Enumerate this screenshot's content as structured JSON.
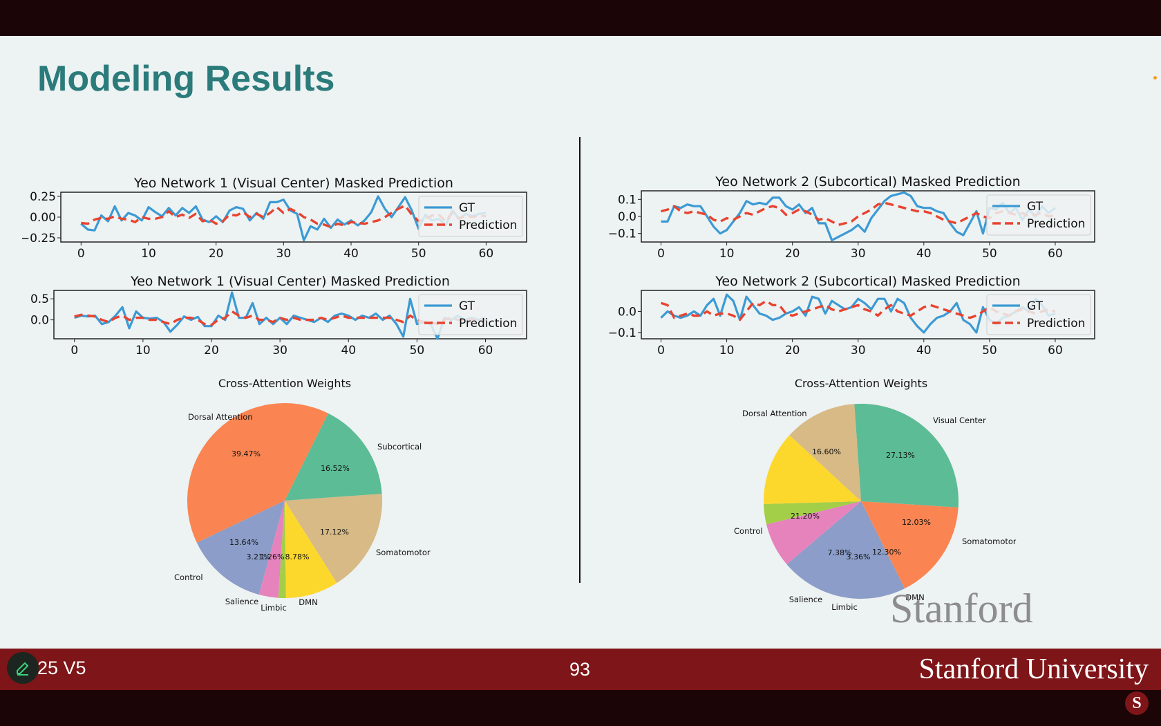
{
  "slide": {
    "title": "Modeling Results",
    "course_label": "25 V5",
    "page_number": "93",
    "university": "Stanford University",
    "wordmark": "Stanford",
    "logo_letter": "S"
  },
  "colors": {
    "title": "#2b7b7b",
    "footer": "#7e1518",
    "gt": "#3b9ad4",
    "prediction": "#e8432f",
    "pie": {
      "Dorsal Attention": "#fa8552",
      "Subcortical": "#5cbc95",
      "Visual Center": "#5cbc95",
      "Somatomotor": "#d7ba86",
      "DMN": "#fdd82c",
      "Limbic": "#a3ce48",
      "Salience": "#e683bd",
      "Control": "#8b9dc8"
    }
  },
  "chart_data": [
    {
      "type": "line",
      "title": "Yeo Network 1 (Visual Center) Masked Prediction",
      "ylim": [
        -0.3,
        0.3
      ],
      "yticks": [
        "0.25",
        "0.00",
        "−0.25"
      ],
      "ytick_values": [
        0.25,
        0.0,
        -0.25
      ],
      "xticks": [
        "0",
        "10",
        "20",
        "30",
        "40",
        "50",
        "60"
      ],
      "xlim": [
        -3,
        66
      ],
      "legend": "top-right",
      "series": [
        {
          "name": "GT",
          "values": [
            -0.08,
            -0.15,
            -0.16,
            0.02,
            -0.05,
            0.13,
            -0.04,
            0.05,
            0.02,
            -0.04,
            0.12,
            0.06,
            0.01,
            0.11,
            0.02,
            0.11,
            0.05,
            0.13,
            -0.03,
            -0.06,
            0.01,
            -0.06,
            0.08,
            0.12,
            0.1,
            -0.04,
            0.05,
            -0.02,
            0.18,
            0.18,
            0.21,
            0.08,
            0.04,
            -0.28,
            -0.11,
            -0.15,
            -0.02,
            -0.13,
            -0.03,
            -0.09,
            -0.04,
            -0.1,
            -0.04,
            0.06,
            0.25,
            0.1,
            0.0,
            0.12,
            0.24,
            0.08,
            -0.14,
            0.03,
            -0.04,
            -0.02,
            -0.1,
            0.08,
            -0.02,
            0.04,
            0.01,
            0.04,
            0.05
          ]
        },
        {
          "name": "Prediction",
          "values": [
            -0.07,
            -0.08,
            -0.03,
            -0.01,
            -0.02,
            0.01,
            -0.02,
            -0.03,
            -0.06,
            0.0,
            -0.02,
            -0.02,
            0.0,
            0.07,
            0.0,
            0.03,
            -0.01,
            0.04,
            -0.05,
            -0.03,
            -0.08,
            -0.05,
            0.03,
            0.02,
            0.06,
            0.0,
            0.04,
            0.0,
            0.05,
            0.12,
            0.05,
            0.1,
            0.06,
            0.0,
            -0.03,
            -0.08,
            -0.09,
            -0.12,
            -0.08,
            -0.1,
            -0.06,
            -0.07,
            -0.08,
            -0.06,
            -0.04,
            0.0,
            0.05,
            0.1,
            0.14,
            0.03,
            -0.05,
            -0.02,
            0.02,
            0.03,
            -0.05,
            0.05,
            -0.02,
            0.02,
            0.0,
            0.02,
            0.01
          ]
        }
      ]
    },
    {
      "type": "line",
      "title": "Yeo Network 1 (Visual Center) Masked Prediction",
      "ylim": [
        -0.45,
        0.7
      ],
      "yticks": [
        "0.5",
        "0.0"
      ],
      "ytick_values": [
        0.5,
        0.0
      ],
      "xticks": [
        "0",
        "10",
        "20",
        "30",
        "40",
        "50",
        "60"
      ],
      "xlim": [
        -3,
        66
      ],
      "legend": "top-right",
      "series": [
        {
          "name": "GT",
          "values": [
            0.05,
            0.1,
            0.08,
            0.1,
            -0.1,
            -0.05,
            0.1,
            0.3,
            -0.2,
            0.2,
            0.05,
            0.03,
            0.05,
            -0.05,
            -0.28,
            -0.12,
            0.08,
            0.0,
            0.07,
            -0.15,
            -0.15,
            0.1,
            0.0,
            0.65,
            0.05,
            0.05,
            0.4,
            -0.1,
            0.05,
            -0.1,
            0.05,
            -0.1,
            0.1,
            0.05,
            0.0,
            -0.05,
            0.05,
            -0.05,
            0.1,
            0.15,
            0.1,
            0.0,
            0.1,
            0.05,
            0.15,
            0.0,
            0.1,
            -0.1,
            -0.4,
            0.5,
            -0.1,
            -0.05,
            -0.1,
            -0.45,
            0.05,
            0.0,
            0.1,
            0.0,
            0.05,
            0.0,
            0.05
          ]
        },
        {
          "name": "Prediction",
          "values": [
            0.08,
            0.12,
            0.1,
            0.08,
            0.0,
            -0.05,
            0.05,
            0.1,
            0.0,
            0.05,
            0.05,
            0.0,
            0.0,
            -0.05,
            -0.1,
            0.0,
            0.05,
            0.05,
            0.0,
            -0.1,
            -0.12,
            0.0,
            0.05,
            0.2,
            0.1,
            0.05,
            0.1,
            0.0,
            0.0,
            -0.05,
            0.05,
            0.0,
            0.05,
            0.0,
            0.0,
            0.0,
            0.05,
            0.0,
            0.05,
            0.1,
            0.05,
            0.05,
            0.05,
            0.05,
            0.05,
            0.05,
            0.05,
            0.0,
            -0.05,
            0.1,
            0.0,
            -0.05,
            -0.05,
            -0.1,
            0.0,
            0.05,
            0.0,
            0.0,
            0.0,
            0.0,
            0.0
          ]
        }
      ]
    },
    {
      "type": "line",
      "title": "Yeo Network 2 (Subcortical) Masked Prediction",
      "ylim": [
        -0.15,
        0.15
      ],
      "yticks": [
        "0.1",
        "0.0",
        "−0.1"
      ],
      "ytick_values": [
        0.1,
        0.0,
        -0.1
      ],
      "xticks": [
        "0",
        "10",
        "20",
        "30",
        "40",
        "50",
        "60"
      ],
      "xlim": [
        -3,
        66
      ],
      "legend": "top-right",
      "series": [
        {
          "name": "GT",
          "values": [
            -0.03,
            -0.03,
            0.06,
            0.05,
            0.07,
            0.06,
            0.06,
            0.0,
            -0.06,
            -0.1,
            -0.08,
            -0.03,
            0.02,
            0.09,
            0.07,
            0.08,
            0.07,
            0.11,
            0.11,
            0.06,
            0.04,
            0.07,
            0.02,
            0.05,
            -0.04,
            -0.04,
            -0.14,
            -0.12,
            -0.1,
            -0.08,
            -0.05,
            -0.09,
            -0.01,
            0.04,
            0.09,
            0.12,
            0.13,
            0.14,
            0.12,
            0.06,
            0.05,
            0.05,
            0.03,
            0.02,
            -0.04,
            -0.09,
            -0.11,
            -0.04,
            0.03,
            -0.1,
            0.05,
            0.04,
            0.08,
            0.02,
            0.05,
            -0.02,
            0.04,
            0.0,
            0.06,
            0.02,
            0.05
          ]
        },
        {
          "name": "Prediction",
          "values": [
            0.03,
            0.04,
            0.06,
            0.03,
            0.02,
            0.03,
            0.02,
            0.01,
            -0.02,
            -0.03,
            -0.01,
            -0.02,
            0.0,
            0.02,
            0.01,
            0.03,
            0.05,
            0.06,
            0.05,
            0.01,
            0.02,
            0.04,
            0.03,
            0.01,
            -0.02,
            -0.01,
            -0.03,
            -0.05,
            -0.04,
            -0.03,
            0.0,
            0.02,
            0.04,
            0.07,
            0.08,
            0.07,
            0.06,
            0.05,
            0.04,
            0.03,
            0.03,
            0.02,
            0.0,
            -0.02,
            -0.03,
            -0.04,
            -0.02,
            0.0,
            0.02,
            0.0,
            -0.01,
            0.02,
            0.03,
            0.02,
            0.01,
            0.02,
            0.0,
            0.01,
            0.02,
            0.0,
            0.01
          ]
        }
      ]
    },
    {
      "type": "line",
      "title": "Yeo Network 2 (Subcortical) Masked Prediction",
      "ylim": [
        -0.13,
        0.1
      ],
      "yticks": [
        "0.0",
        "−0.1"
      ],
      "ytick_values": [
        0.0,
        -0.1
      ],
      "xticks": [
        "0",
        "10",
        "20",
        "30",
        "40",
        "50",
        "60"
      ],
      "xlim": [
        -3,
        66
      ],
      "legend": "top-right",
      "series": [
        {
          "name": "GT",
          "values": [
            -0.03,
            0.0,
            -0.02,
            -0.03,
            -0.02,
            0.0,
            -0.02,
            0.03,
            0.06,
            -0.02,
            0.08,
            0.05,
            -0.04,
            0.07,
            0.03,
            -0.01,
            -0.02,
            -0.04,
            -0.03,
            -0.01,
            0.0,
            0.02,
            -0.02,
            0.07,
            0.06,
            -0.01,
            0.05,
            0.03,
            0.01,
            0.02,
            0.06,
            0.04,
            0.01,
            0.06,
            0.06,
            0.0,
            0.06,
            0.04,
            -0.03,
            -0.07,
            -0.1,
            -0.06,
            -0.03,
            -0.02,
            0.0,
            0.04,
            -0.04,
            -0.06,
            -0.1,
            0.02,
            -0.04,
            -0.06,
            -0.03,
            -0.02,
            0.0,
            0.02,
            0.0,
            0.06,
            0.03,
            -0.02,
            -0.01
          ]
        },
        {
          "name": "Prediction",
          "values": [
            0.04,
            0.03,
            -0.03,
            -0.02,
            -0.01,
            -0.02,
            -0.02,
            0.0,
            -0.02,
            -0.01,
            -0.01,
            -0.02,
            -0.04,
            0.0,
            0.04,
            0.03,
            0.05,
            0.03,
            0.03,
            -0.01,
            -0.02,
            -0.01,
            0.0,
            0.01,
            0.02,
            0.03,
            0.01,
            0.0,
            0.01,
            0.02,
            0.03,
            0.01,
            0.0,
            -0.02,
            0.01,
            0.03,
            0.0,
            -0.01,
            -0.02,
            0.0,
            0.02,
            0.03,
            0.02,
            0.01,
            0.0,
            -0.01,
            -0.02,
            -0.03,
            -0.02,
            0.0,
            0.02,
            0.0,
            -0.01,
            -0.02,
            0.0,
            0.01,
            0.0,
            -0.01,
            0.0,
            0.01,
            0.0
          ]
        }
      ]
    },
    {
      "type": "pie",
      "title": "Cross-Attention Weights",
      "categories": [
        "Dorsal Attention",
        "Control",
        "Salience",
        "Limbic",
        "DMN",
        "Somatomotor",
        "Subcortical"
      ],
      "percent_labels": [
        "39.47%",
        "13.64%",
        "3.21%",
        "1.26%",
        "8.78%",
        "17.12%",
        "16.52%"
      ],
      "values": [
        39.47,
        13.64,
        3.21,
        1.26,
        8.78,
        17.12,
        16.52
      ]
    },
    {
      "type": "pie",
      "title": "Cross-Attention Weights",
      "categories": [
        "Visual Center",
        "Dorsal Attention",
        "Control",
        "Salience",
        "Limbic",
        "DMN",
        "Somatomotor"
      ],
      "percent_labels": [
        "27.13%",
        "16.60%",
        "21.20%",
        "7.38%",
        "3.36%",
        "12.30%",
        "12.03%"
      ],
      "values": [
        27.13,
        16.6,
        21.2,
        7.38,
        3.36,
        12.3,
        12.03
      ]
    }
  ]
}
